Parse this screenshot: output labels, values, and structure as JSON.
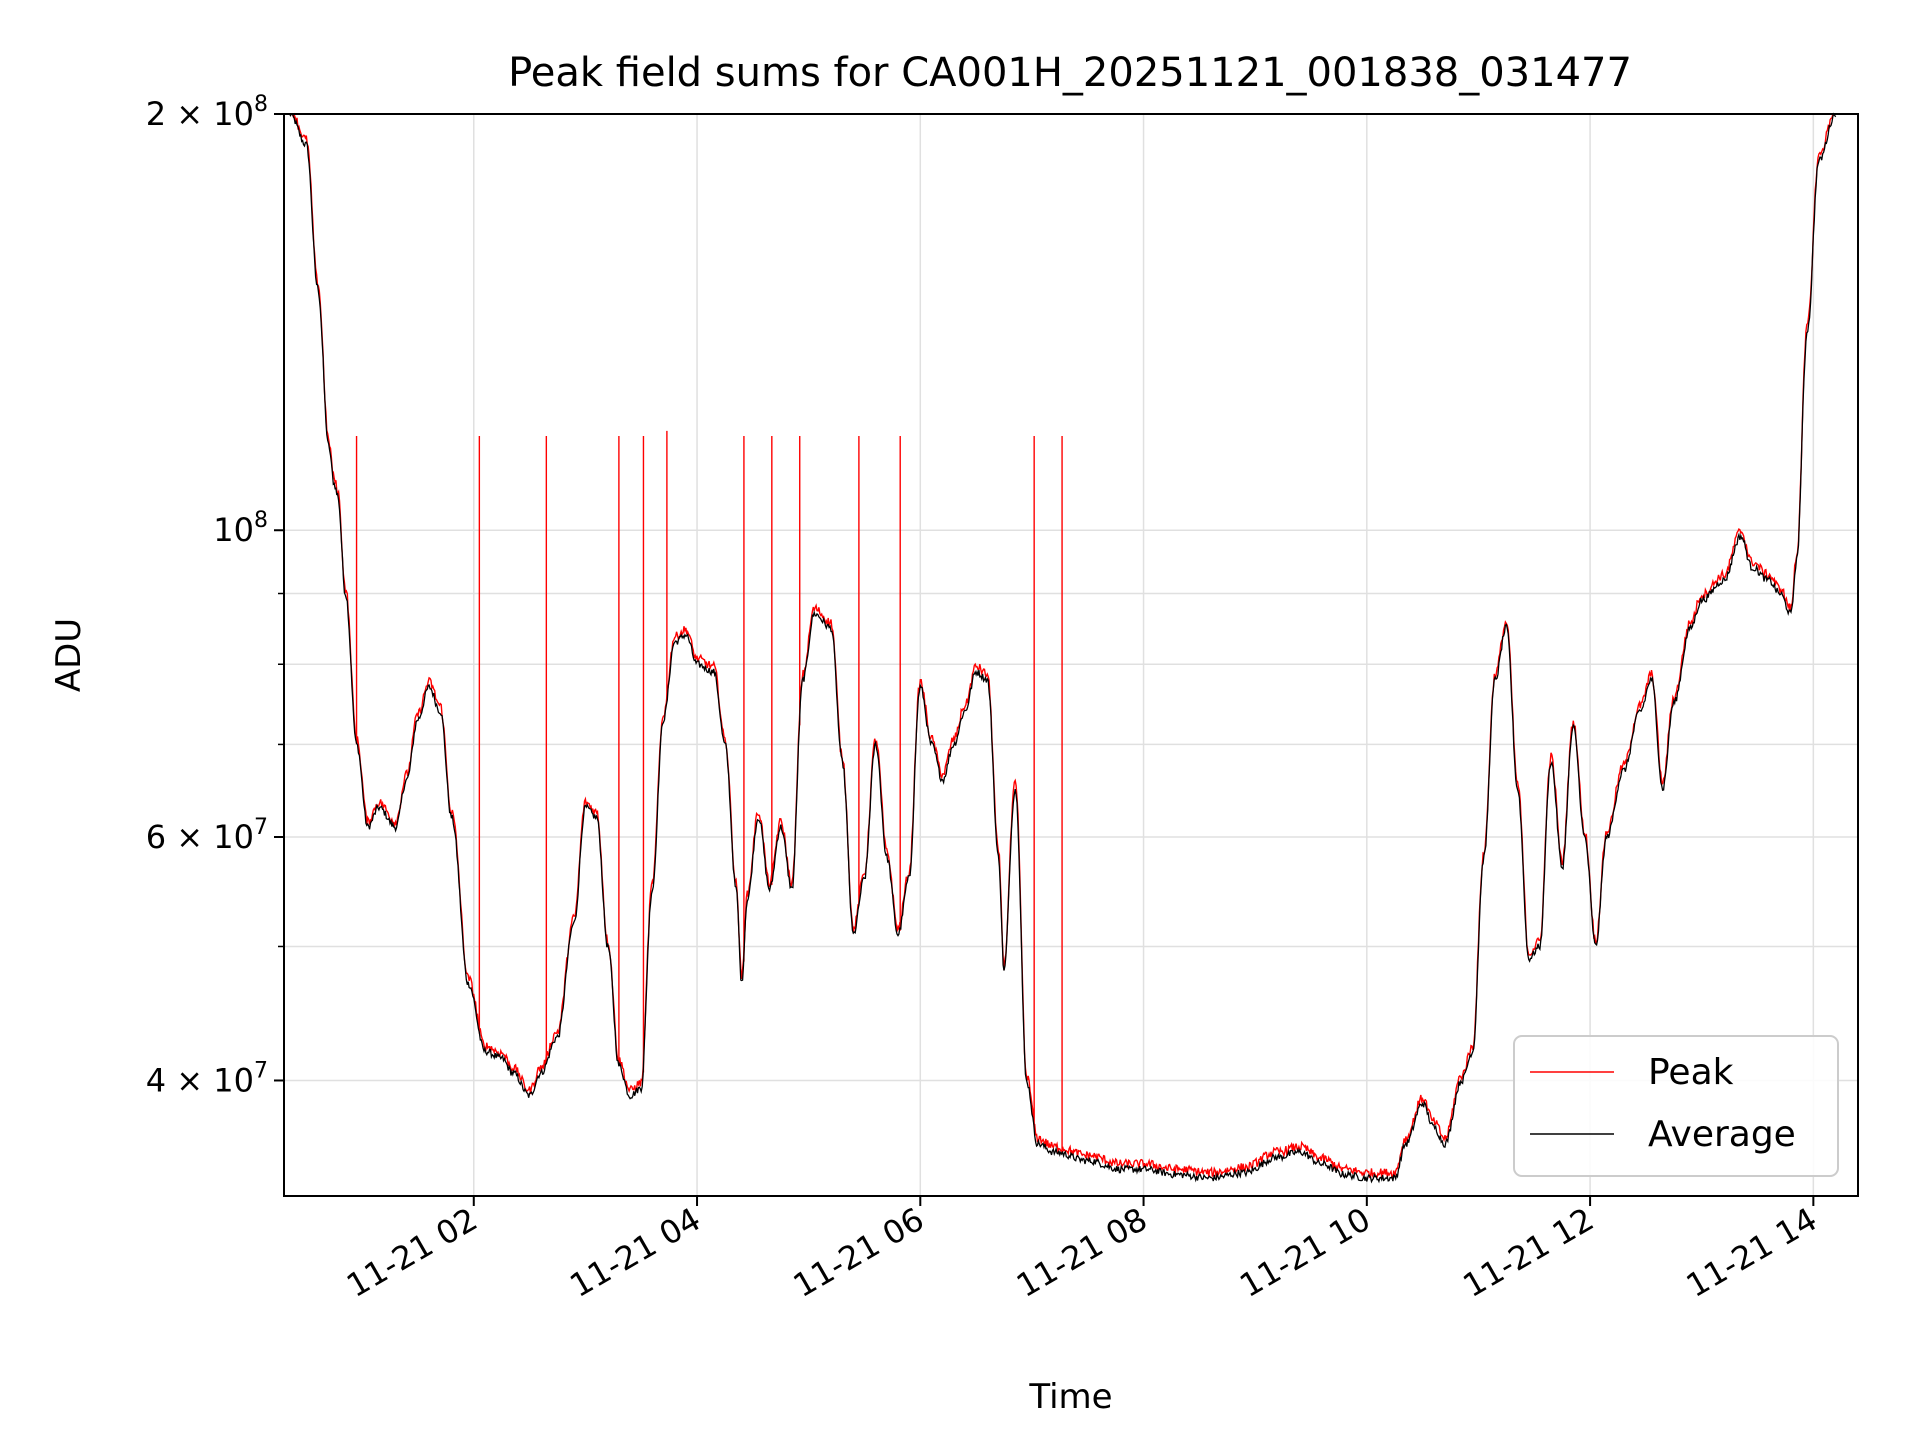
{
  "chart_data": {
    "type": "line",
    "title": "Peak field sums for CA001H_20251121_001838_031477",
    "xlabel": "Time",
    "ylabel": "ADU",
    "yscale": "log",
    "ylim": [
      33000000,
      200000000
    ],
    "xlim_hours": [
      0.3,
      14.4
    ],
    "grid": true,
    "legend_position": "lower-right",
    "x_tick_labels": [
      "11-21 02",
      "11-21 04",
      "11-21 06",
      "11-21 08",
      "11-21 10",
      "11-21 12",
      "11-21 14"
    ],
    "x_tick_hours": [
      2,
      4,
      6,
      8,
      10,
      12,
      14
    ],
    "y_tick_labels": [
      {
        "value": 200000000,
        "mantissa": "2",
        "exponent": "8"
      },
      {
        "value": 100000000,
        "mantissa": "",
        "exponent": "8"
      },
      {
        "value": 60000000,
        "mantissa": "6",
        "exponent": "7"
      },
      {
        "value": 40000000,
        "mantissa": "4",
        "exponent": "7"
      }
    ],
    "y_minor_grid": [
      90000000,
      80000000,
      70000000,
      50000000
    ],
    "colors": {
      "peak": "#ff0000",
      "average": "#000000",
      "grid": "#e0e0e0"
    },
    "series": [
      {
        "name": "Peak",
        "color": "#ff0000"
      },
      {
        "name": "Average",
        "color": "#000000"
      }
    ],
    "average_points_mADU": [
      [
        0.35,
        200
      ],
      [
        0.5,
        190
      ],
      [
        0.6,
        150
      ],
      [
        0.7,
        115
      ],
      [
        0.75,
        108
      ],
      [
        0.78,
        106
      ],
      [
        0.85,
        90
      ],
      [
        0.95,
        70
      ],
      [
        1.05,
        61
      ],
      [
        1.15,
        63
      ],
      [
        1.3,
        61
      ],
      [
        1.4,
        66
      ],
      [
        1.5,
        73
      ],
      [
        1.6,
        77
      ],
      [
        1.7,
        74
      ],
      [
        1.8,
        62
      ],
      [
        1.95,
        47
      ],
      [
        2.1,
        42
      ],
      [
        2.25,
        41.5
      ],
      [
        2.35,
        40.5
      ],
      [
        2.5,
        39
      ],
      [
        2.6,
        40.5
      ],
      [
        2.75,
        43
      ],
      [
        2.9,
        52
      ],
      [
        3.0,
        63
      ],
      [
        3.1,
        62
      ],
      [
        3.2,
        50
      ],
      [
        3.3,
        41
      ],
      [
        3.4,
        39
      ],
      [
        3.5,
        39.5
      ],
      [
        3.6,
        55
      ],
      [
        3.7,
        73
      ],
      [
        3.8,
        83
      ],
      [
        3.9,
        84
      ],
      [
        4.0,
        80
      ],
      [
        4.15,
        79
      ],
      [
        4.25,
        70
      ],
      [
        4.35,
        55
      ],
      [
        4.4,
        47
      ],
      [
        4.45,
        54
      ],
      [
        4.55,
        62
      ],
      [
        4.65,
        55
      ],
      [
        4.75,
        61
      ],
      [
        4.85,
        55
      ],
      [
        4.95,
        78
      ],
      [
        5.05,
        87
      ],
      [
        5.2,
        85
      ],
      [
        5.3,
        68
      ],
      [
        5.4,
        51
      ],
      [
        5.5,
        56
      ],
      [
        5.6,
        70
      ],
      [
        5.7,
        58
      ],
      [
        5.8,
        51
      ],
      [
        5.9,
        56
      ],
      [
        6.0,
        77
      ],
      [
        6.1,
        70
      ],
      [
        6.2,
        66
      ],
      [
        6.3,
        70
      ],
      [
        6.4,
        74
      ],
      [
        6.5,
        79
      ],
      [
        6.6,
        78
      ],
      [
        6.7,
        58
      ],
      [
        6.75,
        48
      ],
      [
        6.85,
        65
      ],
      [
        6.95,
        40
      ],
      [
        7.05,
        36
      ],
      [
        7.2,
        35.5
      ],
      [
        7.5,
        35
      ],
      [
        7.8,
        34.5
      ],
      [
        8.0,
        34.5
      ],
      [
        8.3,
        34.2
      ],
      [
        8.6,
        34
      ],
      [
        8.9,
        34.3
      ],
      [
        9.2,
        35.2
      ],
      [
        9.4,
        35.5
      ],
      [
        9.6,
        34.8
      ],
      [
        9.8,
        34.2
      ],
      [
        10.0,
        34
      ],
      [
        10.25,
        34
      ],
      [
        10.35,
        36
      ],
      [
        10.5,
        38.5
      ],
      [
        10.6,
        37
      ],
      [
        10.7,
        36
      ],
      [
        10.85,
        40
      ],
      [
        10.95,
        42
      ],
      [
        11.05,
        58
      ],
      [
        11.15,
        78
      ],
      [
        11.25,
        85
      ],
      [
        11.35,
        65
      ],
      [
        11.45,
        49
      ],
      [
        11.55,
        50
      ],
      [
        11.65,
        68
      ],
      [
        11.75,
        57
      ],
      [
        11.85,
        72
      ],
      [
        11.95,
        60
      ],
      [
        12.05,
        50
      ],
      [
        12.15,
        60
      ],
      [
        12.3,
        67
      ],
      [
        12.45,
        74
      ],
      [
        12.55,
        78
      ],
      [
        12.65,
        65
      ],
      [
        12.75,
        75
      ],
      [
        12.9,
        85
      ],
      [
        13.0,
        89
      ],
      [
        13.2,
        92
      ],
      [
        13.35,
        99
      ],
      [
        13.45,
        94
      ],
      [
        13.6,
        92
      ],
      [
        13.7,
        90
      ],
      [
        13.8,
        87
      ],
      [
        13.85,
        95
      ],
      [
        13.95,
        140
      ],
      [
        14.05,
        185
      ],
      [
        14.2,
        200
      ]
    ],
    "peak_spikes": [
      {
        "hour": 0.95,
        "value_mADU": 117
      },
      {
        "hour": 2.05,
        "value_mADU": 117
      },
      {
        "hour": 2.65,
        "value_mADU": 117
      },
      {
        "hour": 3.3,
        "value_mADU": 117
      },
      {
        "hour": 3.52,
        "value_mADU": 117
      },
      {
        "hour": 3.73,
        "value_mADU": 118
      },
      {
        "hour": 4.42,
        "value_mADU": 117
      },
      {
        "hour": 4.67,
        "value_mADU": 117
      },
      {
        "hour": 4.92,
        "value_mADU": 117
      },
      {
        "hour": 5.45,
        "value_mADU": 117
      },
      {
        "hour": 5.82,
        "value_mADU": 117
      },
      {
        "hour": 7.02,
        "value_mADU": 117
      },
      {
        "hour": 7.27,
        "value_mADU": 117
      }
    ]
  }
}
